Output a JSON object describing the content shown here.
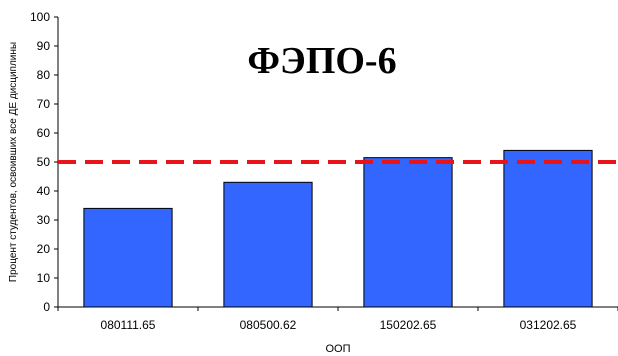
{
  "chart_data": {
    "type": "bar",
    "title": "ФЭПО-6",
    "xlabel": "ООП",
    "ylabel": "Процент студентов, освоивших все ДЕ дисциплины",
    "categories": [
      "080111.65",
      "080500.62",
      "150202.65",
      "031202.65"
    ],
    "values": [
      34,
      43,
      51.5,
      54
    ],
    "ylim": [
      0,
      100
    ],
    "yticks": [
      0,
      10,
      20,
      30,
      40,
      50,
      60,
      70,
      80,
      90,
      100
    ],
    "reference_line": {
      "value": 50,
      "style": "dashed",
      "color": "#e8141a"
    },
    "bar_color": "#3366ff",
    "grid": false,
    "legend": "none"
  }
}
